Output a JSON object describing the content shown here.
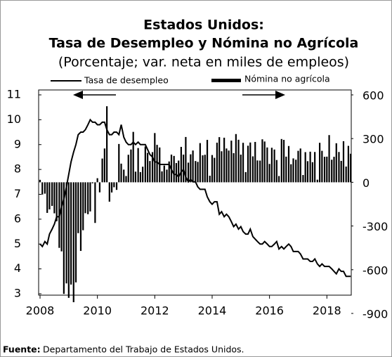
{
  "chart_data": {
    "type": "bar_line_dual",
    "title": "Estados Unidos:",
    "subtitle": "Tasa de Desempleo y Nómina no Agrícola",
    "subtitle2": "(Porcentaje; var. neta en miles de empleos)",
    "source_label": "Fuente:",
    "source": "Departamento del Trabajo de Estados Unidos.",
    "x": [
      2008.0,
      2008.08,
      2008.17,
      2008.25,
      2008.33,
      2008.42,
      2008.5,
      2008.58,
      2008.67,
      2008.75,
      2008.83,
      2008.92,
      2009.0,
      2009.08,
      2009.17,
      2009.25,
      2009.33,
      2009.42,
      2009.5,
      2009.58,
      2009.67,
      2009.75,
      2009.83,
      2009.92,
      2010.0,
      2010.08,
      2010.17,
      2010.25,
      2010.33,
      2010.42,
      2010.5,
      2010.58,
      2010.67,
      2010.75,
      2010.83,
      2010.92,
      2011.0,
      2011.08,
      2011.17,
      2011.25,
      2011.33,
      2011.42,
      2011.5,
      2011.58,
      2011.67,
      2011.75,
      2011.83,
      2011.92,
      2012.0,
      2012.08,
      2012.17,
      2012.25,
      2012.33,
      2012.42,
      2012.5,
      2012.58,
      2012.67,
      2012.75,
      2012.83,
      2012.92,
      2013.0,
      2013.08,
      2013.17,
      2013.25,
      2013.33,
      2013.42,
      2013.5,
      2013.58,
      2013.67,
      2013.75,
      2013.83,
      2013.92,
      2014.0,
      2014.08,
      2014.17,
      2014.25,
      2014.33,
      2014.42,
      2014.5,
      2014.58,
      2014.67,
      2014.75,
      2014.83,
      2014.92,
      2015.0,
      2015.08,
      2015.17,
      2015.25,
      2015.33,
      2015.42,
      2015.5,
      2015.58,
      2015.67,
      2015.75,
      2015.83,
      2015.92,
      2016.0,
      2016.08,
      2016.17,
      2016.25,
      2016.33,
      2016.42,
      2016.5,
      2016.58,
      2016.67,
      2016.75,
      2016.83,
      2016.92,
      2017.0,
      2017.08,
      2017.17,
      2017.25,
      2017.33,
      2017.42,
      2017.5,
      2017.58,
      2017.67,
      2017.75,
      2017.83,
      2017.92,
      2018.0,
      2018.08,
      2018.17,
      2018.25,
      2018.33,
      2018.42,
      2018.5,
      2018.58,
      2018.67,
      2018.75,
      2018.83
    ],
    "series": [
      {
        "name": "Tasa de desempleo",
        "type": "line",
        "color": "#000000",
        "values": [
          5.0,
          4.9,
          5.1,
          5.0,
          5.4,
          5.6,
          5.8,
          6.1,
          6.1,
          6.5,
          6.8,
          7.3,
          7.8,
          8.3,
          8.7,
          9.0,
          9.4,
          9.5,
          9.5,
          9.6,
          9.8,
          10.0,
          9.9,
          9.9,
          9.8,
          9.8,
          9.9,
          9.9,
          9.6,
          9.4,
          9.4,
          9.5,
          9.5,
          9.4,
          9.8,
          9.3,
          9.1,
          9.0,
          9.0,
          9.1,
          9.0,
          9.1,
          9.0,
          9.0,
          9.0,
          8.8,
          8.6,
          8.5,
          8.3,
          8.3,
          8.2,
          8.2,
          8.2,
          8.2,
          8.2,
          8.0,
          7.8,
          7.8,
          7.7,
          7.9,
          8.0,
          7.7,
          7.5,
          7.6,
          7.5,
          7.5,
          7.3,
          7.2,
          7.2,
          7.2,
          6.9,
          6.7,
          6.6,
          6.7,
          6.7,
          6.2,
          6.3,
          6.1,
          6.2,
          6.1,
          5.9,
          5.7,
          5.8,
          5.6,
          5.7,
          5.5,
          5.4,
          5.4,
          5.6,
          5.3,
          5.2,
          5.1,
          5.0,
          5.0,
          5.1,
          5.0,
          4.9,
          4.9,
          5.0,
          5.1,
          4.8,
          4.9,
          4.8,
          4.9,
          5.0,
          4.9,
          4.7,
          4.7,
          4.7,
          4.6,
          4.4,
          4.4,
          4.4,
          4.3,
          4.3,
          4.4,
          4.2,
          4.1,
          4.2,
          4.1,
          4.1,
          4.1,
          4.0,
          3.9,
          3.8,
          4.0,
          3.9,
          3.9,
          3.7,
          3.7,
          3.7
        ]
      },
      {
        "name": "Nómina no agrícola",
        "type": "bar",
        "axis": "y2",
        "color": "#000000",
        "values": [
          17,
          -84,
          -78,
          -210,
          -186,
          -162,
          -213,
          -267,
          -450,
          -474,
          -766,
          -694,
          -793,
          -702,
          -823,
          -687,
          -349,
          -471,
          -329,
          -212,
          -219,
          -200,
          -7,
          -279,
          28,
          -69,
          163,
          232,
          522,
          -133,
          -70,
          -34,
          -52,
          263,
          128,
          87,
          43,
          189,
          225,
          346,
          73,
          235,
          70,
          107,
          246,
          202,
          146,
          207,
          338,
          257,
          239,
          75,
          115,
          87,
          143,
          190,
          181,
          132,
          149,
          243,
          190,
          311,
          135,
          192,
          218,
          146,
          140,
          269,
          185,
          189,
          291,
          45,
          187,
          168,
          272,
          310,
          213,
          306,
          232,
          218,
          286,
          200,
          331,
          292,
          190,
          271,
          70,
          251,
          273,
          178,
          277,
          150,
          149,
          295,
          280,
          239,
          126,
          237,
          225,
          153,
          43,
          297,
          291,
          176,
          249,
          124,
          164,
          155,
          216,
          232,
          50,
          207,
          145,
          210,
          138,
          208,
          18,
          271,
          216,
          175,
          176,
          324,
          155,
          175,
          268,
          208,
          147,
          282,
          108,
          250,
          196
        ]
      }
    ],
    "xlim": [
      2008,
      2018.85
    ],
    "xticks": [
      2008,
      2010,
      2012,
      2014,
      2016,
      2018
    ],
    "ylim": [
      3,
      11
    ],
    "yticks": [
      3,
      4,
      5,
      6,
      7,
      8,
      9,
      10,
      11
    ],
    "y2lim": [
      -765,
      600
    ],
    "y2ticks": [
      -900,
      -600,
      -300,
      0,
      300,
      600
    ]
  }
}
